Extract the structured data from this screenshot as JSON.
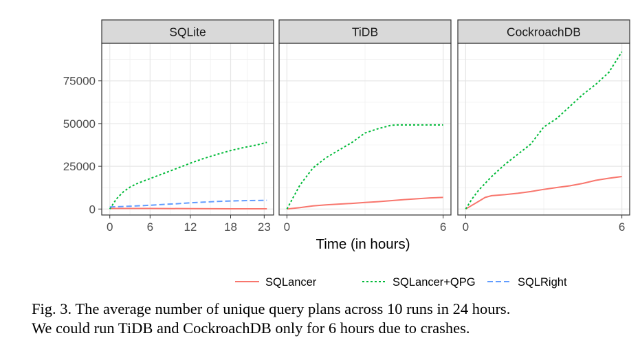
{
  "chart_data": {
    "type": "line",
    "x_title": "Time (in hours)",
    "y_ticks": [
      0,
      25000,
      50000,
      75000
    ],
    "y_tick_labels": [
      "0",
      "25000",
      "50000",
      "75000"
    ],
    "ylim": [
      -3500,
      97000
    ],
    "grid": true,
    "legend_position": "bottom",
    "colors": {
      "SQLancer": "#F8766D",
      "SQLancer+QPG": "#00BA38",
      "SQLRight": "#619CFF"
    },
    "legend": [
      {
        "label": "SQLancer",
        "color": "#F8766D",
        "dash": ""
      },
      {
        "label": "SQLancer+QPG",
        "color": "#00BA38",
        "dash": "3,3"
      },
      {
        "label": "SQLRight",
        "color": "#619CFF",
        "dash": "8,4"
      }
    ],
    "panels": [
      {
        "title": "SQLite",
        "xlim": [
          -1.2,
          24.4
        ],
        "x_ticks": [
          0,
          6,
          12,
          18,
          23
        ],
        "x_tick_labels": [
          "0",
          "6",
          "12",
          "18",
          "23"
        ],
        "series": [
          {
            "name": "SQLancer",
            "dash": "",
            "x": [
              0,
              6,
              12,
              18,
              23.4
            ],
            "y": [
              300,
              300,
              200,
              100,
              100
            ]
          },
          {
            "name": "SQLancer+QPG",
            "dash": "3,3",
            "x": [
              0,
              1,
              2,
              3,
              4,
              5,
              6,
              8,
              10,
              12,
              14,
              16,
              18,
              20,
              22,
              23.4
            ],
            "y": [
              0,
              6000,
              10000,
              12800,
              14800,
              16300,
              17800,
              20800,
              23800,
              26800,
              29600,
              32000,
              34200,
              36000,
              37600,
              39000
            ]
          },
          {
            "name": "SQLRight",
            "dash": "8,4",
            "x": [
              0,
              2,
              4,
              6,
              8,
              10,
              12,
              14,
              16,
              18,
              20,
              22,
              23.4
            ],
            "y": [
              1200,
              1500,
              1800,
              2200,
              2700,
              3100,
              3600,
              4000,
              4400,
              4700,
              4900,
              5000,
              5100
            ]
          }
        ]
      },
      {
        "title": "TiDB",
        "xlim": [
          -0.3,
          6.3
        ],
        "x_ticks": [
          0,
          6
        ],
        "x_tick_labels": [
          "0",
          "6"
        ],
        "series": [
          {
            "name": "SQLancer",
            "dash": "",
            "x": [
              0,
              0.5,
              1,
              1.5,
              2,
              2.5,
              3,
              3.5,
              4,
              4.5,
              5,
              5.5,
              6
            ],
            "y": [
              0,
              800,
              1800,
              2400,
              2900,
              3300,
              3800,
              4300,
              4900,
              5500,
              6000,
              6500,
              6800
            ]
          },
          {
            "name": "SQLancer+QPG",
            "dash": "3,3",
            "x": [
              0,
              0.25,
              0.5,
              0.75,
              1,
              1.5,
              2,
              2.5,
              3,
              3.5,
              4,
              4.2,
              5,
              6
            ],
            "y": [
              0,
              7000,
              14000,
              19000,
              24000,
              30000,
              34500,
              39000,
              44500,
              47000,
              49000,
              49200,
              49200,
              49200
            ]
          }
        ]
      },
      {
        "title": "CockroachDB",
        "xlim": [
          -0.3,
          6.3
        ],
        "x_ticks": [
          0,
          6
        ],
        "x_tick_labels": [
          "0",
          "6"
        ],
        "series": [
          {
            "name": "SQLancer",
            "dash": "",
            "x": [
              0,
              0.5,
              0.75,
              1,
              1.5,
              2,
              2.5,
              3,
              3.5,
              4,
              4.5,
              5,
              5.5,
              6
            ],
            "y": [
              0,
              4500,
              6800,
              7800,
              8400,
              9200,
              10200,
              11500,
              12600,
              13600,
              15000,
              16800,
              18000,
              19000
            ]
          },
          {
            "name": "SQLancer+QPG",
            "dash": "3,3",
            "x": [
              0,
              0.25,
              0.5,
              1,
              1.5,
              2,
              2.5,
              3,
              3.5,
              4,
              4.5,
              5,
              5.5,
              6
            ],
            "y": [
              0,
              6000,
              11000,
              19000,
              26000,
              32000,
              38000,
              48000,
              53000,
              60000,
              67000,
              73000,
              80000,
              92000
            ]
          }
        ]
      }
    ]
  },
  "caption": {
    "line1": "Fig. 3.  The average number of unique query plans across 10 runs in 24 hours.",
    "line2": "We could run TiDB and CockroachDB only for 6 hours due to crashes."
  }
}
